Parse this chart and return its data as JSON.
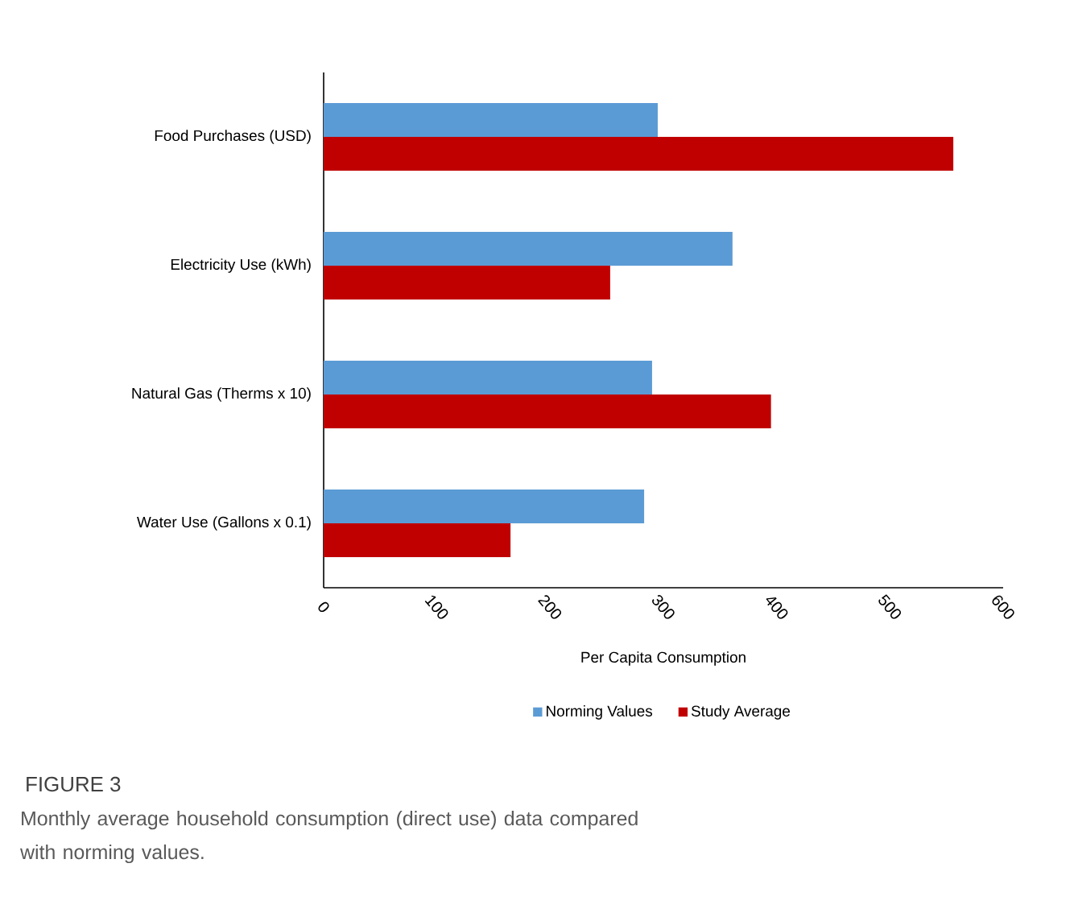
{
  "chart_data": {
    "type": "bar",
    "orientation": "horizontal",
    "title": "FIGURE 3",
    "subtitle": "Monthly average household consumption (direct use) data compared with norming values.",
    "xlabel": "Per Capita Consumption",
    "categories": [
      "Food Purchases (USD)",
      "Electricity Use (kWh)",
      "Natural Gas (Therms x 10)",
      "Water Use (Gallons x 0.1)"
    ],
    "series": [
      {
        "name": "Norming Values",
        "color": "#5b9bd5",
        "values": [
          295,
          361,
          290,
          283
        ]
      },
      {
        "name": "Study Average",
        "color": "#c00000",
        "values": [
          556,
          253,
          395,
          165
        ]
      }
    ],
    "xlim": [
      0,
      600
    ],
    "xticks": [
      0,
      100,
      200,
      300,
      400,
      500,
      600
    ],
    "legend": "bottom"
  }
}
